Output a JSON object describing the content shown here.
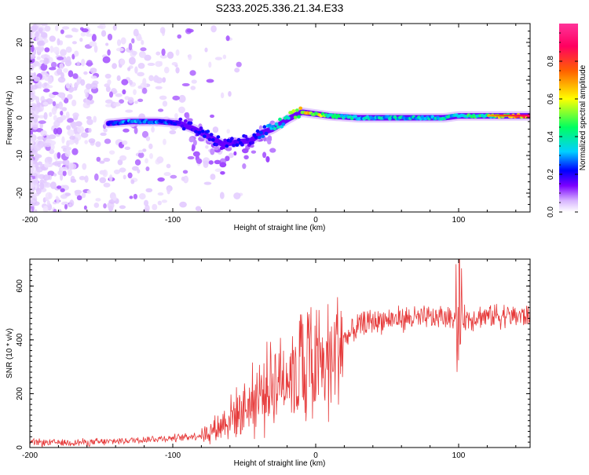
{
  "title": "S233.2025.336.21.34.E33",
  "chart_data": [
    {
      "type": "heatmap",
      "name": "spectrogram",
      "xlabel": "Height of straight line (km)",
      "ylabel": "Frequency (Hz)",
      "xlim": [
        -200,
        150
      ],
      "ylim": [
        -25,
        25
      ],
      "xticks": [
        -200,
        -100,
        0,
        100
      ],
      "xtick_labels": [
        "-200",
        "-100",
        "0",
        "100"
      ],
      "yticks": [
        -20,
        -10,
        0,
        10,
        20
      ],
      "ytick_labels": [
        "-20",
        "-10",
        "0",
        "10",
        "20"
      ],
      "colorbar": {
        "label": "Normalized spectral amplitude",
        "range": [
          0,
          1
        ],
        "ticks": [
          0.0,
          0.2,
          0.4,
          0.6,
          0.8
        ],
        "tick_labels": [
          "0.0",
          "0.2",
          "0.4",
          "0.6",
          "0.8"
        ],
        "colors": [
          "#ffffff",
          "#d7b4ff",
          "#7b00ff",
          "#0000ff",
          "#00d0ff",
          "#00ff60",
          "#ffff00",
          "#ff6000",
          "#ff0060",
          "#ff3399"
        ]
      },
      "ridge": {
        "x": [
          -145,
          -130,
          -110,
          -95,
          -85,
          -75,
          -65,
          -55,
          -45,
          -38,
          -30,
          -20,
          -10,
          0,
          10,
          30,
          60,
          90,
          100,
          120,
          150
        ],
        "frequency": [
          -1.5,
          -1,
          -1,
          -1.5,
          -3,
          -5,
          -7,
          -6.5,
          -6,
          -4,
          -3,
          -0.5,
          1.5,
          1,
          0.5,
          0,
          0,
          0,
          0.5,
          0.5,
          0.5
        ],
        "amplitude": [
          0.35,
          0.45,
          0.45,
          0.3,
          0.3,
          0.35,
          0.3,
          0.35,
          0.3,
          0.4,
          0.5,
          0.55,
          0.75,
          0.7,
          0.6,
          0.5,
          0.5,
          0.5,
          0.55,
          0.6,
          0.85
        ]
      }
    },
    {
      "type": "line",
      "name": "snr",
      "xlabel": "Height of straight line (km)",
      "ylabel": "SNR (10 * v/v)",
      "xlim": [
        -200,
        150
      ],
      "ylim": [
        0,
        700
      ],
      "xticks": [
        -200,
        -100,
        0,
        100
      ],
      "xtick_labels": [
        "-200",
        "-100",
        "0",
        "100"
      ],
      "yticks": [
        0,
        200,
        400,
        600
      ],
      "ytick_labels": [
        "0",
        "200",
        "400",
        "600"
      ],
      "color": "#e63a3a",
      "envelope": {
        "x": [
          -200,
          -150,
          -120,
          -100,
          -80,
          -70,
          -60,
          -50,
          -40,
          -30,
          -20,
          -10,
          0,
          10,
          20,
          30,
          40,
          60,
          80,
          95,
          100,
          105,
          120,
          150
        ],
        "y": [
          18,
          20,
          30,
          35,
          45,
          70,
          110,
          150,
          190,
          240,
          280,
          300,
          290,
          330,
          400,
          450,
          470,
          480,
          480,
          485,
          490,
          480,
          490,
          490
        ]
      }
    }
  ]
}
